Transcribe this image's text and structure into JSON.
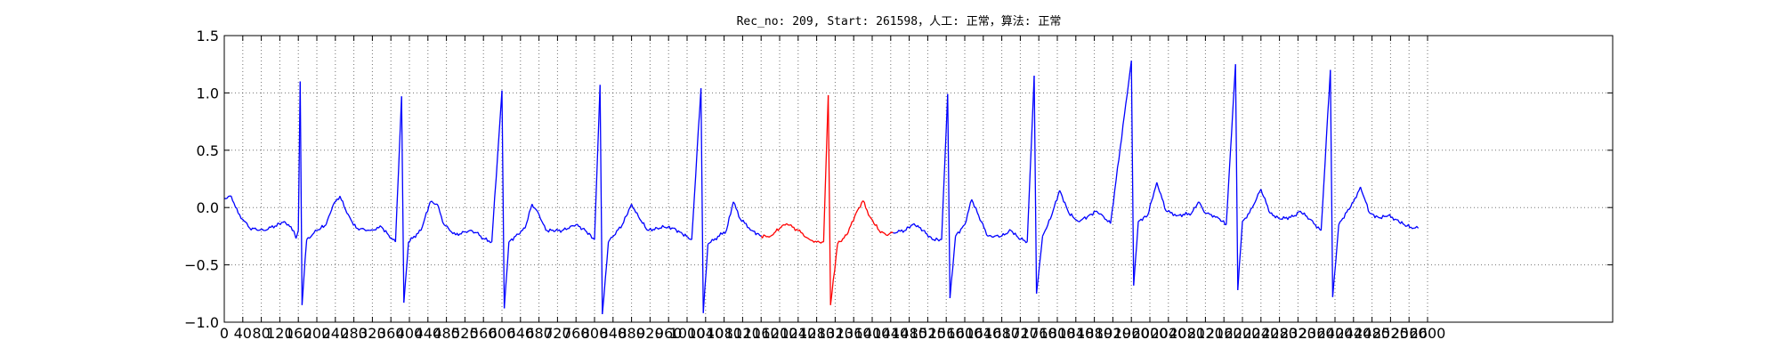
{
  "chart_data": {
    "type": "line",
    "title": "Rec_no: 209, Start: 261598，人工: 正常，算法: 正常",
    "xlabel": "",
    "ylabel": "",
    "xlim": [
      0,
      3000
    ],
    "ylim": [
      -1.0,
      1.5
    ],
    "x_tick_step": 40,
    "x_ticks_until": 2600,
    "y_ticks": [
      "1.5",
      "1.0",
      "0.5",
      "0.0",
      "−0.5",
      "−1.0"
    ],
    "y_tick_values": [
      1.5,
      1.0,
      0.5,
      0.0,
      -0.5,
      -1.0
    ],
    "grid": true,
    "colors": {
      "normal": "#0000ff",
      "highlight": "#ff0000"
    },
    "series": [
      {
        "segment": "blue",
        "points": [
          [
            0,
            0.08
          ],
          [
            15,
            0.1
          ],
          [
            30,
            -0.05
          ],
          [
            55,
            -0.18
          ],
          [
            85,
            -0.2
          ],
          [
            110,
            -0.16
          ],
          [
            130,
            -0.12
          ],
          [
            150,
            -0.2
          ],
          [
            155,
            -0.27
          ],
          [
            160,
            -0.2
          ],
          [
            164,
            1.1
          ],
          [
            168,
            -0.85
          ],
          [
            178,
            -0.28
          ],
          [
            200,
            -0.2
          ],
          [
            220,
            -0.15
          ],
          [
            235,
            0.02
          ],
          [
            250,
            0.1
          ],
          [
            265,
            -0.05
          ],
          [
            285,
            -0.18
          ],
          [
            315,
            -0.2
          ],
          [
            340,
            -0.17
          ],
          [
            355,
            -0.24
          ],
          [
            370,
            -0.3
          ],
          [
            383,
            0.97
          ],
          [
            388,
            -0.83
          ],
          [
            398,
            -0.3
          ],
          [
            425,
            -0.2
          ],
          [
            445,
            0.05
          ],
          [
            460,
            0.03
          ],
          [
            475,
            -0.15
          ],
          [
            500,
            -0.24
          ],
          [
            530,
            -0.2
          ],
          [
            545,
            -0.22
          ],
          [
            560,
            -0.27
          ],
          [
            578,
            -0.3
          ],
          [
            600,
            1.02
          ],
          [
            605,
            -0.88
          ],
          [
            615,
            -0.3
          ],
          [
            650,
            -0.18
          ],
          [
            665,
            0.03
          ],
          [
            680,
            -0.06
          ],
          [
            695,
            -0.2
          ],
          [
            730,
            -0.2
          ],
          [
            760,
            -0.15
          ],
          [
            780,
            -0.2
          ],
          [
            800,
            -0.28
          ],
          [
            812,
            1.07
          ],
          [
            817,
            -0.93
          ],
          [
            830,
            -0.3
          ],
          [
            860,
            -0.15
          ],
          [
            880,
            0.03
          ],
          [
            895,
            -0.08
          ],
          [
            915,
            -0.2
          ],
          [
            950,
            -0.17
          ],
          [
            970,
            -0.18
          ],
          [
            990,
            -0.23
          ],
          [
            1010,
            -0.28
          ],
          [
            1030,
            1.04
          ],
          [
            1035,
            -0.92
          ],
          [
            1045,
            -0.32
          ],
          [
            1085,
            -0.2
          ],
          [
            1100,
            0.05
          ],
          [
            1115,
            -0.1
          ],
          [
            1140,
            -0.2
          ],
          [
            1160,
            -0.25
          ]
        ]
      },
      {
        "segment": "red",
        "points": [
          [
            1160,
            -0.25
          ],
          [
            1180,
            -0.25
          ],
          [
            1200,
            -0.18
          ],
          [
            1215,
            -0.14
          ],
          [
            1240,
            -0.2
          ],
          [
            1265,
            -0.28
          ],
          [
            1280,
            -0.3
          ],
          [
            1295,
            -0.3
          ],
          [
            1305,
            0.98
          ],
          [
            1310,
            -0.85
          ],
          [
            1325,
            -0.32
          ],
          [
            1345,
            -0.24
          ],
          [
            1365,
            -0.05
          ],
          [
            1380,
            0.06
          ],
          [
            1395,
            -0.08
          ],
          [
            1415,
            -0.2
          ],
          [
            1430,
            -0.24
          ],
          [
            1445,
            -0.22
          ]
        ]
      },
      {
        "segment": "blue",
        "points": [
          [
            1445,
            -0.22
          ],
          [
            1470,
            -0.2
          ],
          [
            1490,
            -0.14
          ],
          [
            1510,
            -0.2
          ],
          [
            1530,
            -0.28
          ],
          [
            1550,
            -0.28
          ],
          [
            1563,
            0.99
          ],
          [
            1568,
            -0.79
          ],
          [
            1580,
            -0.25
          ],
          [
            1600,
            -0.15
          ],
          [
            1615,
            0.07
          ],
          [
            1630,
            -0.07
          ],
          [
            1650,
            -0.25
          ],
          [
            1680,
            -0.25
          ],
          [
            1700,
            -0.2
          ],
          [
            1715,
            -0.26
          ],
          [
            1735,
            -0.3
          ],
          [
            1750,
            1.15
          ],
          [
            1755,
            -0.75
          ],
          [
            1768,
            -0.25
          ],
          [
            1785,
            -0.1
          ],
          [
            1805,
            0.15
          ],
          [
            1825,
            -0.05
          ],
          [
            1845,
            -0.12
          ],
          [
            1865,
            -0.08
          ],
          [
            1885,
            -0.03
          ],
          [
            1900,
            -0.08
          ],
          [
            1915,
            -0.14
          ],
          [
            1960,
            1.28
          ],
          [
            1965,
            -0.68
          ],
          [
            1975,
            -0.12
          ],
          [
            1995,
            -0.07
          ],
          [
            2015,
            0.22
          ],
          [
            2035,
            -0.03
          ],
          [
            2060,
            -0.07
          ],
          [
            2090,
            -0.05
          ],
          [
            2105,
            0.05
          ],
          [
            2120,
            -0.05
          ],
          [
            2145,
            -0.08
          ],
          [
            2165,
            -0.15
          ],
          [
            2185,
            1.25
          ],
          [
            2190,
            -0.72
          ],
          [
            2200,
            -0.12
          ],
          [
            2215,
            -0.05
          ],
          [
            2240,
            0.16
          ],
          [
            2260,
            -0.05
          ],
          [
            2280,
            -0.1
          ],
          [
            2310,
            -0.08
          ],
          [
            2325,
            -0.03
          ],
          [
            2345,
            -0.1
          ],
          [
            2370,
            -0.2
          ],
          [
            2390,
            1.2
          ],
          [
            2395,
            -0.78
          ],
          [
            2408,
            -0.15
          ],
          [
            2440,
            0.05
          ],
          [
            2455,
            0.18
          ],
          [
            2475,
            -0.05
          ],
          [
            2495,
            -0.09
          ],
          [
            2515,
            -0.07
          ],
          [
            2530,
            -0.1
          ],
          [
            2550,
            -0.15
          ],
          [
            2570,
            -0.18
          ],
          [
            2580,
            -0.18
          ]
        ]
      }
    ]
  }
}
